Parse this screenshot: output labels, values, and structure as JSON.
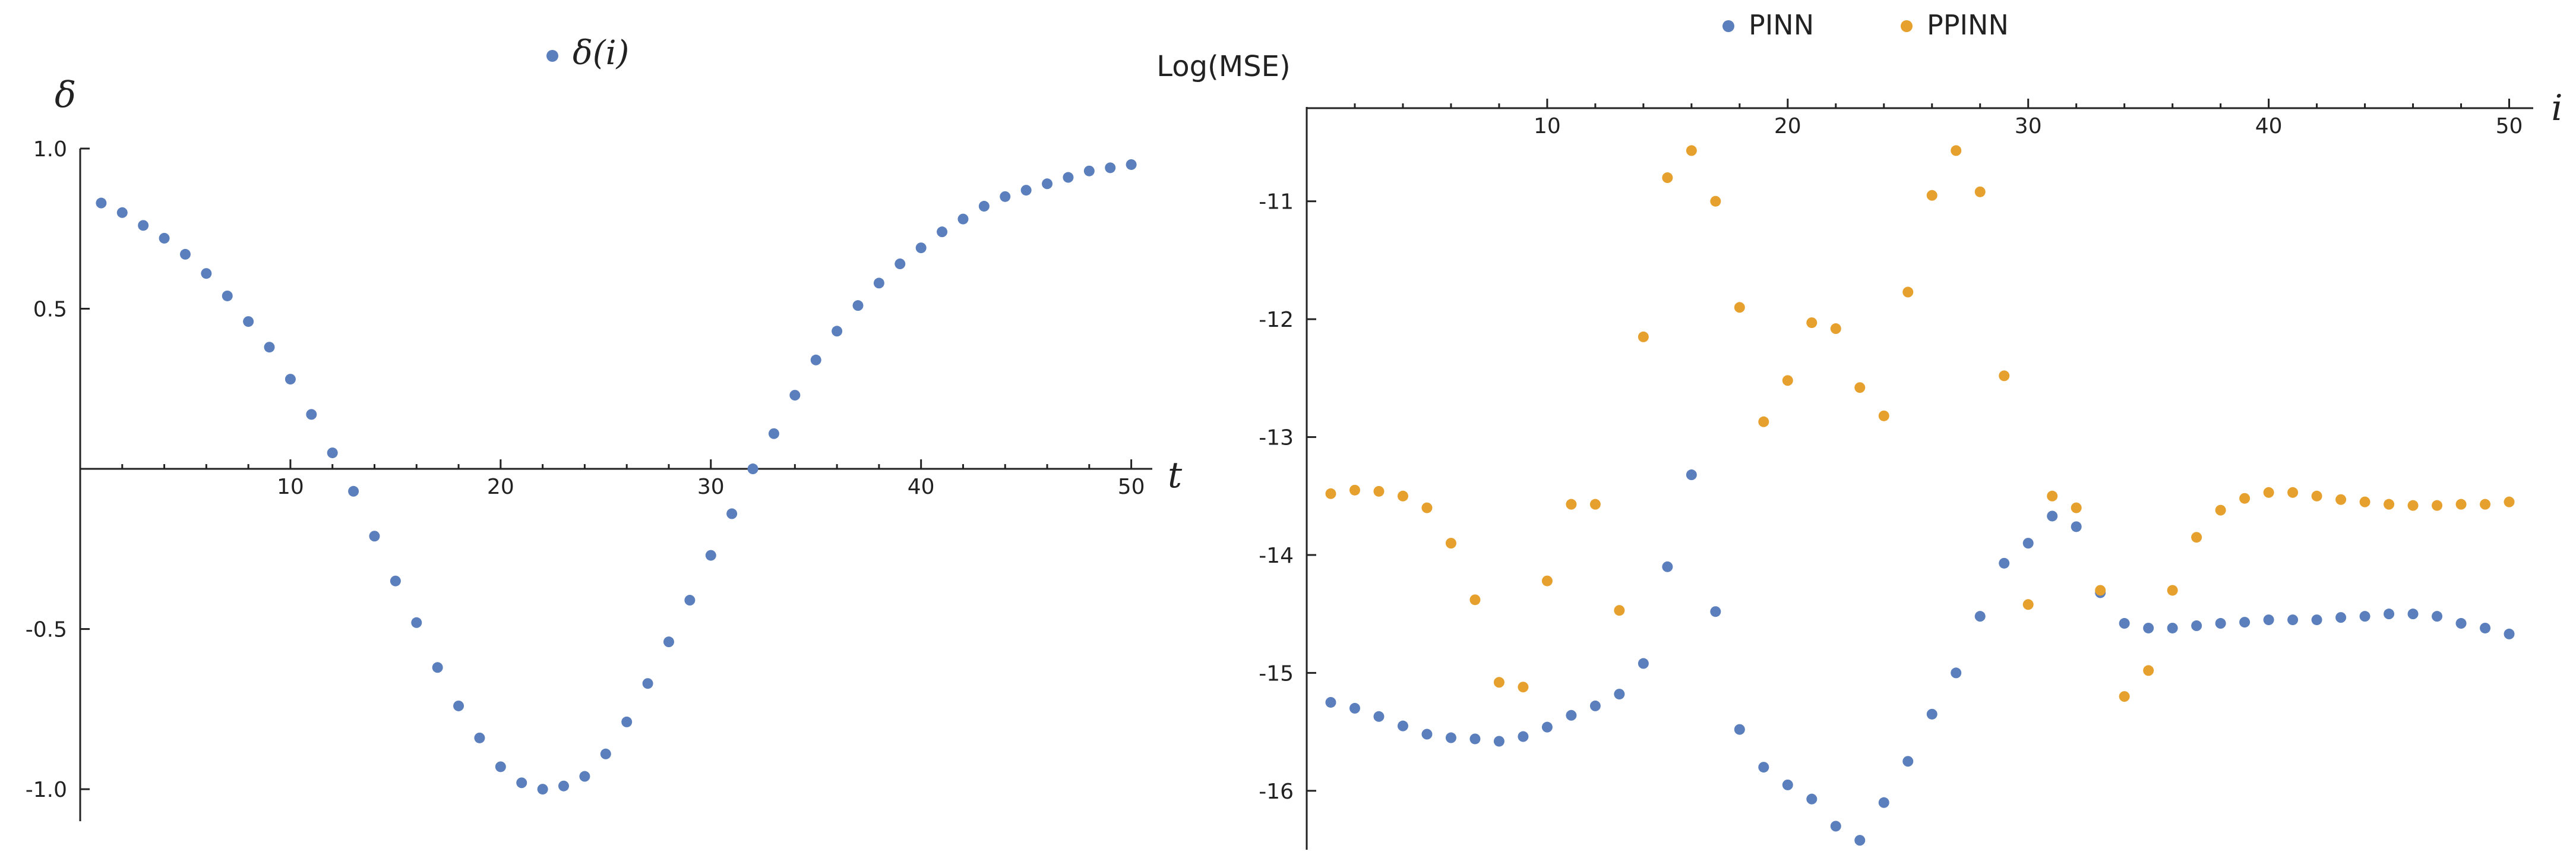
{
  "chart_data": [
    {
      "type": "scatter",
      "title": "",
      "xlabel": "t",
      "ylabel": "δ",
      "xlim": [
        0,
        51
      ],
      "ylim": [
        -1.1,
        1.0
      ],
      "x_ticks": [
        10,
        20,
        30,
        40,
        50
      ],
      "x_tick_labels": [
        "10",
        "20",
        "30",
        "40",
        "50"
      ],
      "y_ticks": [
        1.0,
        0.5,
        -0.5,
        -1.0
      ],
      "y_tick_labels": [
        "1.0",
        "0.5",
        "-0.5",
        "-1.0"
      ],
      "grid": false,
      "legend": "top-center",
      "series": [
        {
          "name": "δ(i)",
          "color": "#5b7fbc",
          "x": [
            1,
            2,
            3,
            4,
            5,
            6,
            7,
            8,
            9,
            10,
            11,
            12,
            13,
            14,
            15,
            16,
            17,
            18,
            19,
            20,
            21,
            22,
            23,
            24,
            25,
            26,
            27,
            28,
            29,
            30,
            31,
            32,
            33,
            34,
            35,
            36,
            37,
            38,
            39,
            40,
            41,
            42,
            43,
            44,
            45,
            46,
            47,
            48,
            49,
            50
          ],
          "y": [
            0.83,
            0.8,
            0.76,
            0.72,
            0.67,
            0.61,
            0.54,
            0.46,
            0.38,
            0.28,
            0.17,
            0.05,
            -0.07,
            -0.21,
            -0.35,
            -0.48,
            -0.62,
            -0.74,
            -0.84,
            -0.93,
            -0.98,
            -1.0,
            -0.99,
            -0.96,
            -0.89,
            -0.79,
            -0.67,
            -0.54,
            -0.41,
            -0.27,
            -0.14,
            0.0,
            0.11,
            0.23,
            0.34,
            0.43,
            0.51,
            0.58,
            0.64,
            0.69,
            0.74,
            0.78,
            0.82,
            0.85,
            0.87,
            0.89,
            0.91,
            0.93,
            0.94,
            0.95
          ]
        }
      ]
    },
    {
      "type": "scatter",
      "title": "",
      "xlabel": "i",
      "ylabel": "Log(MSE)",
      "xlim": [
        0,
        51
      ],
      "ylim": [
        -16.5,
        -10.2
      ],
      "x_ticks": [
        10,
        20,
        30,
        40,
        50
      ],
      "x_tick_labels": [
        "10",
        "20",
        "30",
        "40",
        "50"
      ],
      "y_ticks": [
        -11,
        -12,
        -13,
        -14,
        -15,
        -16
      ],
      "y_tick_labels": [
        "-11",
        "-12",
        "-13",
        "-14",
        "-15",
        "-16"
      ],
      "grid": false,
      "legend": "top-center",
      "series": [
        {
          "name": "PINN",
          "color": "#5b7fbc",
          "x": [
            1,
            2,
            3,
            4,
            5,
            6,
            7,
            8,
            9,
            10,
            11,
            12,
            13,
            14,
            15,
            16,
            17,
            18,
            19,
            20,
            21,
            22,
            23,
            24,
            25,
            26,
            27,
            28,
            29,
            30,
            31,
            32,
            33,
            34,
            35,
            36,
            37,
            38,
            39,
            40,
            41,
            42,
            43,
            44,
            45,
            46,
            47,
            48,
            49,
            50
          ],
          "y": [
            -15.25,
            -15.3,
            -15.37,
            -15.45,
            -15.52,
            -15.55,
            -15.56,
            -15.58,
            -15.54,
            -15.46,
            -15.36,
            -15.28,
            -15.18,
            -14.92,
            -14.1,
            -13.32,
            -14.48,
            -15.48,
            -15.8,
            -15.95,
            -16.07,
            -16.3,
            -16.42,
            -16.1,
            -15.75,
            -15.35,
            -15.0,
            -14.52,
            -14.07,
            -13.9,
            -13.67,
            -13.76,
            -14.32,
            -14.58,
            -14.62,
            -14.62,
            -14.6,
            -14.58,
            -14.57,
            -14.55,
            -14.55,
            -14.55,
            -14.53,
            -14.52,
            -14.5,
            -14.5,
            -14.52,
            -14.58,
            -14.62,
            -14.67
          ]
        },
        {
          "name": "PPINN",
          "color": "#e6a02e",
          "x": [
            1,
            2,
            3,
            4,
            5,
            6,
            7,
            8,
            9,
            10,
            11,
            12,
            13,
            14,
            15,
            16,
            17,
            18,
            19,
            20,
            21,
            22,
            23,
            24,
            25,
            26,
            27,
            28,
            29,
            30,
            31,
            32,
            33,
            34,
            35,
            36,
            37,
            38,
            39,
            40,
            41,
            42,
            43,
            44,
            45,
            46,
            47,
            48,
            49,
            50
          ],
          "y": [
            -13.48,
            -13.45,
            -13.46,
            -13.5,
            -13.6,
            -13.9,
            -14.38,
            -15.08,
            -15.12,
            -14.22,
            -13.57,
            -13.57,
            -14.47,
            -12.15,
            -10.8,
            -10.57,
            -11.0,
            -11.9,
            -12.87,
            -12.52,
            -12.03,
            -12.08,
            -12.58,
            -12.82,
            -11.77,
            -10.95,
            -10.57,
            -10.92,
            -12.48,
            -14.42,
            -13.5,
            -13.6,
            -14.3,
            -15.2,
            -14.98,
            -14.3,
            -13.85,
            -13.62,
            -13.52,
            -13.47,
            -13.47,
            -13.5,
            -13.53,
            -13.55,
            -13.57,
            -13.58,
            -13.58,
            -13.57,
            -13.57,
            -13.55
          ]
        }
      ]
    }
  ]
}
